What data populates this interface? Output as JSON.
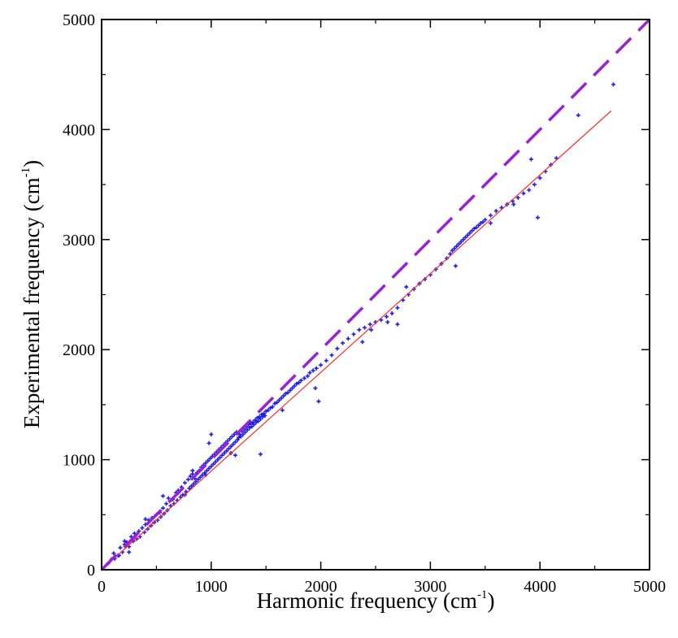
{
  "chart_data": {
    "type": "scatter",
    "title": "",
    "xlabel": {
      "main": "Harmonic frequency (cm",
      "sup": "-1",
      "close": ")"
    },
    "ylabel": {
      "main": "Experimental frequency (cm",
      "sup": "-1",
      "close": ")"
    },
    "xlim": [
      0,
      5000
    ],
    "ylim": [
      0,
      5000
    ],
    "xticks": [
      0,
      1000,
      2000,
      3000,
      4000,
      5000
    ],
    "yticks": [
      0,
      1000,
      2000,
      3000,
      4000,
      5000
    ],
    "xtick_labels": [
      "0",
      "1000",
      "2000",
      "3000",
      "4000",
      "5000"
    ],
    "ytick_labels": [
      "0",
      "1000",
      "2000",
      "3000",
      "4000",
      "5000"
    ],
    "grid": false,
    "legend": "none",
    "colors": {
      "points": "#1f1fe6",
      "fit": "#ff2a2a",
      "identity": "#9b1fd6",
      "axes": "#000000"
    },
    "series": [
      {
        "kind": "scatter",
        "marker": "plus",
        "points": [
          [
            60,
            58
          ],
          [
            90,
            95
          ],
          [
            110,
            150
          ],
          [
            120,
            100
          ],
          [
            150,
            130
          ],
          [
            170,
            200
          ],
          [
            190,
            160
          ],
          [
            210,
            230
          ],
          [
            230,
            250
          ],
          [
            250,
            210
          ],
          [
            270,
            300
          ],
          [
            290,
            260
          ],
          [
            300,
            330
          ],
          [
            320,
            280
          ],
          [
            340,
            350
          ],
          [
            350,
            300
          ],
          [
            370,
            380
          ],
          [
            390,
            340
          ],
          [
            400,
            410
          ],
          [
            420,
            370
          ],
          [
            430,
            450
          ],
          [
            450,
            400
          ],
          [
            460,
            470
          ],
          [
            480,
            430
          ],
          [
            500,
            500
          ],
          [
            510,
            450
          ],
          [
            530,
            520
          ],
          [
            540,
            480
          ],
          [
            560,
            560
          ],
          [
            570,
            510
          ],
          [
            590,
            600
          ],
          [
            600,
            540
          ],
          [
            610,
            650
          ],
          [
            630,
            580
          ],
          [
            650,
            640
          ],
          [
            660,
            600
          ],
          [
            680,
            700
          ],
          [
            690,
            630
          ],
          [
            700,
            720
          ],
          [
            720,
            660
          ],
          [
            730,
            750
          ],
          [
            740,
            680
          ],
          [
            760,
            790
          ],
          [
            770,
            710
          ],
          [
            790,
            820
          ],
          [
            800,
            740
          ],
          [
            810,
            850
          ],
          [
            820,
            760
          ],
          [
            830,
            870
          ],
          [
            840,
            780
          ],
          [
            850,
            830
          ],
          [
            860,
            800
          ],
          [
            870,
            880
          ],
          [
            880,
            820
          ],
          [
            890,
            900
          ],
          [
            900,
            840
          ],
          [
            910,
            930
          ],
          [
            920,
            860
          ],
          [
            930,
            950
          ],
          [
            940,
            880
          ],
          [
            950,
            970
          ],
          [
            960,
            900
          ],
          [
            970,
            990
          ],
          [
            980,
            920
          ],
          [
            990,
            1010
          ],
          [
            1000,
            940
          ],
          [
            1010,
            1030
          ],
          [
            1020,
            960
          ],
          [
            1030,
            1050
          ],
          [
            1040,
            980
          ],
          [
            1050,
            1070
          ],
          [
            1060,
            1000
          ],
          [
            1070,
            1090
          ],
          [
            1080,
            1020
          ],
          [
            1090,
            1110
          ],
          [
            1100,
            1040
          ],
          [
            1110,
            1130
          ],
          [
            1120,
            1060
          ],
          [
            1130,
            1150
          ],
          [
            1140,
            1080
          ],
          [
            1150,
            1170
          ],
          [
            1160,
            1100
          ],
          [
            1170,
            1190
          ],
          [
            1180,
            1120
          ],
          [
            1190,
            1210
          ],
          [
            1200,
            1140
          ],
          [
            1210,
            1230
          ],
          [
            1220,
            1160
          ],
          [
            1230,
            1250
          ],
          [
            1240,
            1180
          ],
          [
            1250,
            1200
          ],
          [
            1260,
            1230
          ],
          [
            1270,
            1210
          ],
          [
            1280,
            1260
          ],
          [
            1290,
            1230
          ],
          [
            1300,
            1280
          ],
          [
            1310,
            1250
          ],
          [
            1320,
            1300
          ],
          [
            1330,
            1270
          ],
          [
            1340,
            1320
          ],
          [
            1350,
            1290
          ],
          [
            1360,
            1330
          ],
          [
            1370,
            1300
          ],
          [
            1380,
            1340
          ],
          [
            1390,
            1320
          ],
          [
            1400,
            1360
          ],
          [
            1410,
            1340
          ],
          [
            1420,
            1380
          ],
          [
            1430,
            1350
          ],
          [
            1440,
            1390
          ],
          [
            1450,
            1370
          ],
          [
            1460,
            1410
          ],
          [
            1470,
            1390
          ],
          [
            1480,
            1420
          ],
          [
            1490,
            1400
          ],
          [
            1500,
            1440
          ],
          [
            1520,
            1450
          ],
          [
            1540,
            1470
          ],
          [
            1560,
            1480
          ],
          [
            1580,
            1510
          ],
          [
            1600,
            1520
          ],
          [
            1620,
            1540
          ],
          [
            1640,
            1560
          ],
          [
            1660,
            1580
          ],
          [
            1680,
            1600
          ],
          [
            1700,
            1610
          ],
          [
            1720,
            1630
          ],
          [
            1740,
            1650
          ],
          [
            1760,
            1670
          ],
          [
            1780,
            1690
          ],
          [
            1800,
            1700
          ],
          [
            1820,
            1720
          ],
          [
            1850,
            1740
          ],
          [
            1880,
            1760
          ],
          [
            1900,
            1790
          ],
          [
            1930,
            1810
          ],
          [
            1960,
            1830
          ],
          [
            2000,
            1860
          ],
          [
            1980,
            1530
          ],
          [
            2050,
            1900
          ],
          [
            2100,
            1950
          ],
          [
            2150,
            2010
          ],
          [
            2200,
            2060
          ],
          [
            2250,
            2100
          ],
          [
            2300,
            2140
          ],
          [
            2350,
            2180
          ],
          [
            2400,
            2200
          ],
          [
            2450,
            2230
          ],
          [
            2500,
            2250
          ],
          [
            2550,
            2270
          ],
          [
            2600,
            2300
          ],
          [
            2650,
            2330
          ],
          [
            2700,
            2380
          ],
          [
            2750,
            2450
          ],
          [
            2800,
            2500
          ],
          [
            2850,
            2550
          ],
          [
            2900,
            2600
          ],
          [
            2950,
            2640
          ],
          [
            3000,
            2680
          ],
          [
            3050,
            2730
          ],
          [
            3100,
            2780
          ],
          [
            3150,
            2830
          ],
          [
            3180,
            2870
          ],
          [
            3200,
            2900
          ],
          [
            3220,
            2920
          ],
          [
            3240,
            2940
          ],
          [
            3260,
            2960
          ],
          [
            3280,
            2980
          ],
          [
            3300,
            3000
          ],
          [
            3320,
            3020
          ],
          [
            3340,
            3040
          ],
          [
            3360,
            3060
          ],
          [
            3380,
            3080
          ],
          [
            3400,
            3100
          ],
          [
            3420,
            3110
          ],
          [
            3440,
            3130
          ],
          [
            3460,
            3150
          ],
          [
            3480,
            3160
          ],
          [
            3500,
            3180
          ],
          [
            3550,
            3220
          ],
          [
            3600,
            3260
          ],
          [
            3650,
            3290
          ],
          [
            3700,
            3320
          ],
          [
            3750,
            3350
          ],
          [
            3800,
            3380
          ],
          [
            3850,
            3420
          ],
          [
            3900,
            3450
          ],
          [
            3950,
            3500
          ],
          [
            4000,
            3560
          ],
          [
            4050,
            3620
          ],
          [
            4100,
            3680
          ],
          [
            4150,
            3740
          ],
          [
            3980,
            3200
          ],
          [
            4350,
            4130
          ],
          [
            4670,
            4410
          ],
          [
            3920,
            3730
          ],
          [
            3760,
            3320
          ],
          [
            3550,
            3150
          ],
          [
            3230,
            2760
          ],
          [
            2780,
            2570
          ],
          [
            2700,
            2230
          ],
          [
            2460,
            2180
          ],
          [
            1650,
            1450
          ],
          [
            1450,
            1050
          ],
          [
            1220,
            1040
          ],
          [
            1000,
            1230
          ],
          [
            980,
            1150
          ],
          [
            830,
            900
          ],
          [
            700,
            700
          ],
          [
            560,
            670
          ],
          [
            400,
            460
          ],
          [
            210,
            260
          ],
          [
            160,
            130
          ],
          [
            250,
            160
          ],
          [
            2380,
            2070
          ],
          [
            2610,
            2250
          ],
          [
            1950,
            1650
          ],
          [
            1180,
            1060
          ],
          [
            950,
            860
          ],
          [
            760,
            680
          ]
        ]
      },
      {
        "kind": "line",
        "name": "",
        "points": [
          [
            0,
            0
          ],
          [
            4650,
            4170
          ]
        ]
      },
      {
        "kind": "line",
        "dashed": true,
        "name": "",
        "points": [
          [
            0,
            0
          ],
          [
            5000,
            5000
          ]
        ]
      }
    ]
  }
}
